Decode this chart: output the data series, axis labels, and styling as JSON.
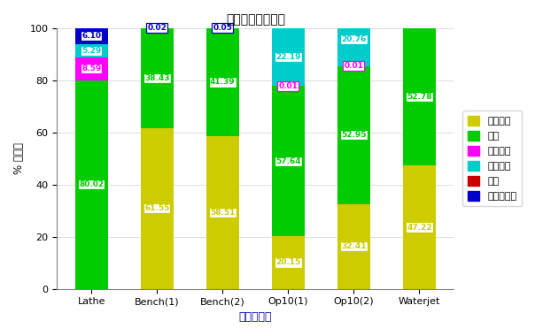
{
  "categories": [
    "Lathe",
    "Bench(1)",
    "Bench(2)",
    "Op10(1)",
    "Op10(2)",
    "Waterjet"
  ],
  "layer_order": [
    "アイドル",
    "稼働",
    "ブロック",
    "段取替え",
    "故障",
    "作業員待ち"
  ],
  "values": {
    "アイドル": [
      0.0,
      61.55,
      58.51,
      20.15,
      32.41,
      47.22
    ],
    "稼働": [
      80.02,
      38.43,
      41.39,
      57.64,
      52.95,
      52.78
    ],
    "ブロック": [
      8.59,
      0.0,
      0.0,
      0.01,
      0.01,
      0.0
    ],
    "段取替え": [
      5.29,
      0.0,
      0.0,
      22.19,
      20.76,
      0.0
    ],
    "故障": [
      0.0,
      0.0,
      0.0,
      0.0,
      0.0,
      0.0
    ],
    "作業員待ち": [
      6.1,
      0.02,
      0.05,
      0.0,
      0.0,
      0.0
    ]
  },
  "colors": {
    "アイドル": "#cccc00",
    "稼働": "#00cc00",
    "ブロック": "#ff00ff",
    "段取替え": "#00cccc",
    "故障": "#cc0000",
    "作業員待ち": "#0000cc"
  },
  "title": "マシンの稼働状況",
  "xlabel": "エレメント",
  "ylabel": "% 稼働率",
  "ylim": [
    0,
    100
  ],
  "bar_width": 0.5,
  "figsize": [
    6.04,
    3.8
  ],
  "dpi": 100
}
